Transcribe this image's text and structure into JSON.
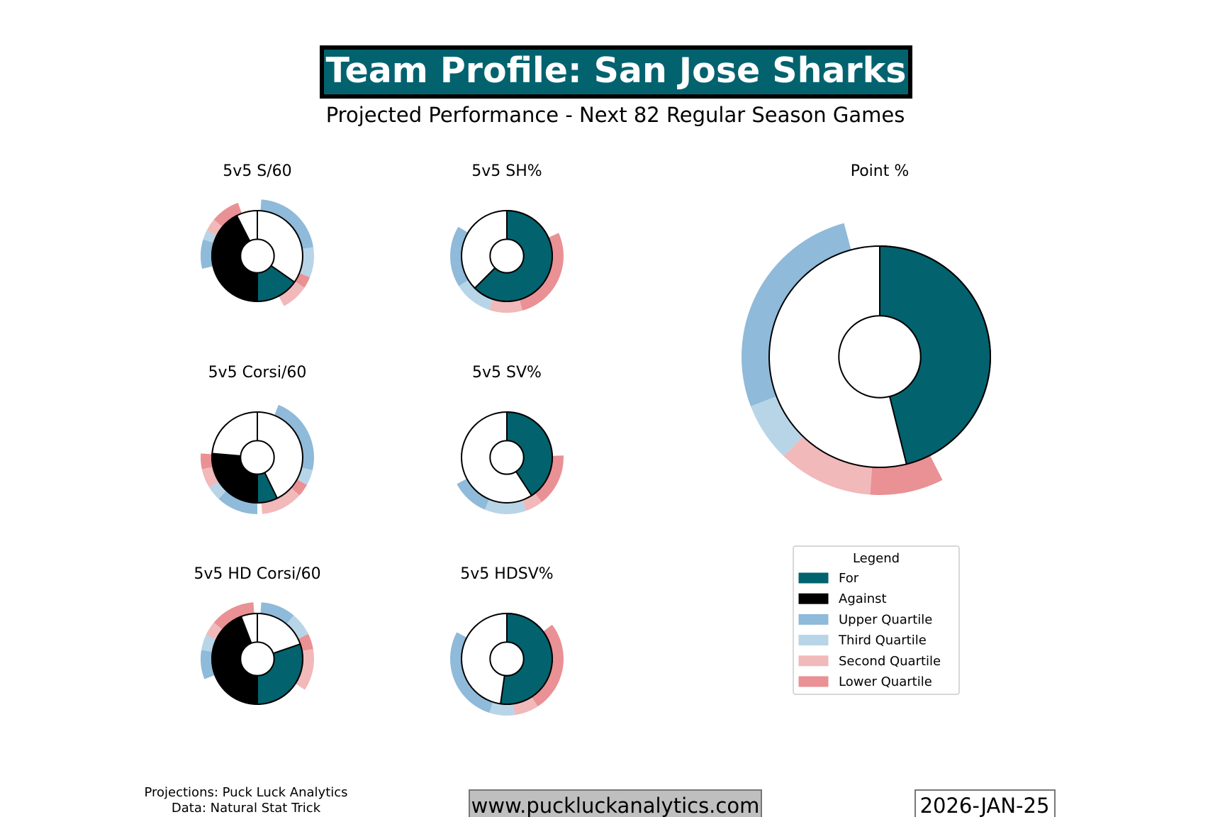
{
  "header": {
    "title": "Team Profile: San Jose Sharks",
    "subtitle": "Projected Performance - Next 82 Regular Season Games"
  },
  "colors": {
    "for": "#02636f",
    "against": "#000000",
    "upper": "#8fbad9",
    "third": "#b8d5e8",
    "second": "#f1b9ba",
    "lower": "#e99194"
  },
  "legend": {
    "title": "Legend",
    "items": [
      {
        "label": "For",
        "key": "for"
      },
      {
        "label": "Against",
        "key": "against"
      },
      {
        "label": "Upper Quartile",
        "key": "upper"
      },
      {
        "label": "Third Quartile",
        "key": "third"
      },
      {
        "label": "Second Quartile",
        "key": "second"
      },
      {
        "label": "Lower Quartile",
        "key": "lower"
      }
    ]
  },
  "chart_data": [
    {
      "type": "pie",
      "title": "5v5 S/60",
      "angle_units": "degrees clockwise from top",
      "pie": [
        {
          "series": "for",
          "start": 125,
          "end": 180
        },
        {
          "series": "against",
          "start": 180,
          "end": 333
        }
      ],
      "ring": [
        {
          "series": "upper",
          "start": 4,
          "end": 81
        },
        {
          "series": "third",
          "start": 81,
          "end": 112
        },
        {
          "series": "lower",
          "start": 112,
          "end": 124
        },
        {
          "series": "second",
          "start": 124,
          "end": 152
        },
        {
          "series": "upper",
          "start": 257,
          "end": 287
        },
        {
          "series": "third",
          "start": 287,
          "end": 297
        },
        {
          "series": "second",
          "start": 297,
          "end": 310
        },
        {
          "series": "lower",
          "start": 310,
          "end": 340
        }
      ]
    },
    {
      "type": "pie",
      "title": "5v5 SH%",
      "angle_units": "degrees clockwise from top",
      "pie": [
        {
          "series": "for",
          "start": 0,
          "end": 225
        }
      ],
      "ring": [
        {
          "series": "lower",
          "start": 66,
          "end": 164
        },
        {
          "series": "second",
          "start": 164,
          "end": 198
        },
        {
          "series": "third",
          "start": 198,
          "end": 238
        },
        {
          "series": "upper",
          "start": 238,
          "end": 301
        }
      ]
    },
    {
      "type": "pie",
      "title": "Point %",
      "angle_units": "degrees clockwise from top",
      "pie": [
        {
          "series": "for",
          "start": 0,
          "end": 166
        }
      ],
      "ring": [
        {
          "series": "lower",
          "start": 153,
          "end": 184
        },
        {
          "series": "second",
          "start": 184,
          "end": 224
        },
        {
          "series": "third",
          "start": 224,
          "end": 249
        },
        {
          "series": "upper",
          "start": 249,
          "end": 345
        }
      ]
    },
    {
      "type": "pie",
      "title": "5v5 Corsi/60",
      "angle_units": "degrees clockwise from top",
      "pie": [
        {
          "series": "for",
          "start": 154,
          "end": 180
        },
        {
          "series": "against",
          "start": 180,
          "end": 275
        }
      ],
      "ring": [
        {
          "series": "upper",
          "start": 22,
          "end": 103
        },
        {
          "series": "third",
          "start": 103,
          "end": 119
        },
        {
          "series": "lower",
          "start": 119,
          "end": 132
        },
        {
          "series": "second",
          "start": 132,
          "end": 175
        },
        {
          "series": "upper",
          "start": 180,
          "end": 223
        },
        {
          "series": "third",
          "start": 223,
          "end": 238
        },
        {
          "series": "second",
          "start": 238,
          "end": 258
        },
        {
          "series": "lower",
          "start": 258,
          "end": 274
        }
      ]
    },
    {
      "type": "pie",
      "title": "5v5 SV%",
      "angle_units": "degrees clockwise from top",
      "pie": [
        {
          "series": "for",
          "start": 0,
          "end": 147
        }
      ],
      "ring": [
        {
          "series": "lower",
          "start": 88,
          "end": 142
        },
        {
          "series": "second",
          "start": 142,
          "end": 160
        },
        {
          "series": "third",
          "start": 160,
          "end": 203
        },
        {
          "series": "upper",
          "start": 203,
          "end": 242
        }
      ]
    },
    {
      "type": "pie",
      "title": "5v5 HD Corsi/60",
      "angle_units": "degrees clockwise from top",
      "pie": [
        {
          "series": "for",
          "start": 71,
          "end": 180
        },
        {
          "series": "against",
          "start": 180,
          "end": 339
        }
      ],
      "ring": [
        {
          "series": "upper",
          "start": 4,
          "end": 40
        },
        {
          "series": "third",
          "start": 40,
          "end": 64
        },
        {
          "series": "lower",
          "start": 64,
          "end": 80
        },
        {
          "series": "second",
          "start": 80,
          "end": 123
        },
        {
          "series": "upper",
          "start": 249,
          "end": 279
        },
        {
          "series": "third",
          "start": 279,
          "end": 295
        },
        {
          "series": "second",
          "start": 295,
          "end": 310
        },
        {
          "series": "lower",
          "start": 310,
          "end": 356
        }
      ]
    },
    {
      "type": "pie",
      "title": "5v5 HDSV%",
      "angle_units": "degrees clockwise from top",
      "pie": [
        {
          "series": "for",
          "start": 0,
          "end": 188
        }
      ],
      "ring": [
        {
          "series": "lower",
          "start": 53,
          "end": 147
        },
        {
          "series": "second",
          "start": 147,
          "end": 172
        },
        {
          "series": "third",
          "start": 172,
          "end": 198
        },
        {
          "series": "upper",
          "start": 198,
          "end": 298
        }
      ]
    }
  ],
  "footer": {
    "credits_line1": "Projections: Puck Luck Analytics",
    "credits_line2": "Data: Natural Stat Trick",
    "website": "www.puckluckanalytics.com",
    "date": "2026-JAN-25"
  }
}
